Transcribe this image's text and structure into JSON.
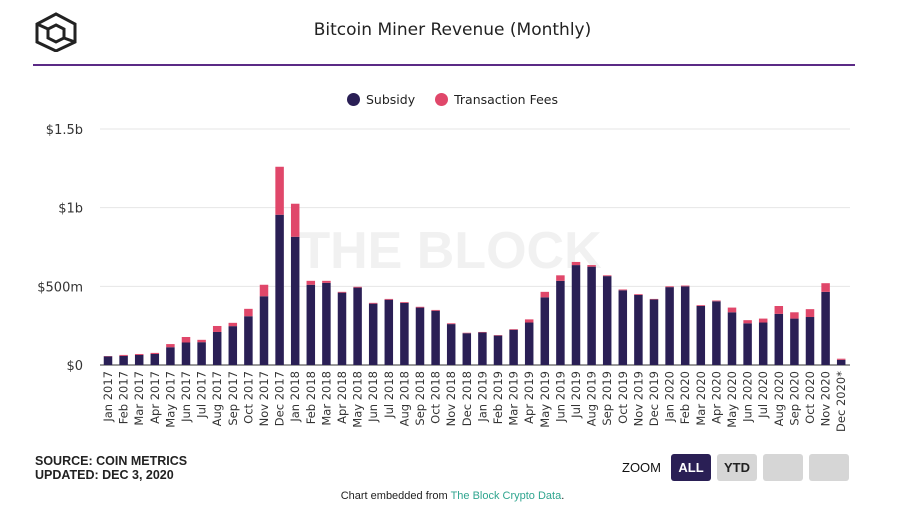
{
  "header": {
    "title": "Bitcoin Miner Revenue (Monthly)",
    "logo_icon": "the-block-cube-logo"
  },
  "legend": [
    {
      "label": "Subsidy",
      "color": "#2a1f55"
    },
    {
      "label": "Transaction Fees",
      "color": "#e0476a"
    }
  ],
  "watermark": "THE BLOCK",
  "chart_data": {
    "type": "bar",
    "stacked": true,
    "title": "Bitcoin Miner Revenue (Monthly)",
    "ylim": [
      0,
      1500
    ],
    "yunit": "millions USD",
    "yticks": [
      {
        "value": 0,
        "label": "$0"
      },
      {
        "value": 500,
        "label": "$500m"
      },
      {
        "value": 1000,
        "label": "$1b"
      },
      {
        "value": 1500,
        "label": "$1.5b"
      }
    ],
    "grid": true,
    "legend_position": "top",
    "categories": [
      "Jan 2017",
      "Feb 2017",
      "Mar 2017",
      "Apr 2017",
      "May 2017",
      "Jun 2017",
      "Jul 2017",
      "Aug 2017",
      "Sep 2017",
      "Oct 2017",
      "Nov 2017",
      "Dec 2017",
      "Jan 2018",
      "Feb 2018",
      "Mar 2018",
      "Apr 2018",
      "May 2018",
      "Jun 2018",
      "Jul 2018",
      "Aug 2018",
      "Sep 2018",
      "Oct 2018",
      "Nov 2018",
      "Dec 2018",
      "Jan 2019",
      "Feb 2019",
      "Mar 2019",
      "Apr 2019",
      "May 2019",
      "Jun 2019",
      "Jul 2019",
      "Aug 2019",
      "Sep 2019",
      "Oct 2019",
      "Nov 2019",
      "Dec 2019",
      "Jan 2020",
      "Feb 2020",
      "Mar 2020",
      "Apr 2020",
      "May 2020",
      "Jun 2020",
      "Jul 2020",
      "Aug 2020",
      "Sep 2020",
      "Oct 2020",
      "Nov 2020",
      "Dec 2020*"
    ],
    "series": [
      {
        "name": "Subsidy",
        "color": "#2a1f55",
        "values": [
          55,
          58,
          64,
          70,
          113,
          143,
          145,
          210,
          247,
          310,
          437,
          955,
          815,
          510,
          522,
          460,
          492,
          390,
          415,
          395,
          365,
          345,
          260,
          202,
          207,
          187,
          224,
          270,
          430,
          535,
          635,
          625,
          565,
          475,
          445,
          417,
          495,
          500,
          375,
          405,
          335,
          265,
          270,
          325,
          295,
          305,
          465,
          33
        ]
      },
      {
        "name": "Transaction Fees",
        "color": "#e0476a",
        "values": [
          2,
          6,
          6,
          7,
          20,
          35,
          15,
          38,
          21,
          47,
          73,
          305,
          210,
          25,
          13,
          5,
          5,
          5,
          5,
          5,
          5,
          5,
          5,
          3,
          3,
          3,
          4,
          20,
          35,
          35,
          20,
          10,
          5,
          5,
          5,
          3,
          5,
          5,
          5,
          5,
          30,
          20,
          25,
          50,
          40,
          50,
          55,
          7
        ]
      }
    ]
  },
  "footer": {
    "source": "SOURCE: COIN METRICS",
    "updated": "UPDATED: DEC 3, 2020",
    "zoom_label": "ZOOM",
    "zoom_buttons": [
      "ALL",
      "YTD"
    ],
    "embed_prefix": "Chart embedded from ",
    "embed_link": "The Block Crypto Data",
    "embed_suffix": "."
  }
}
